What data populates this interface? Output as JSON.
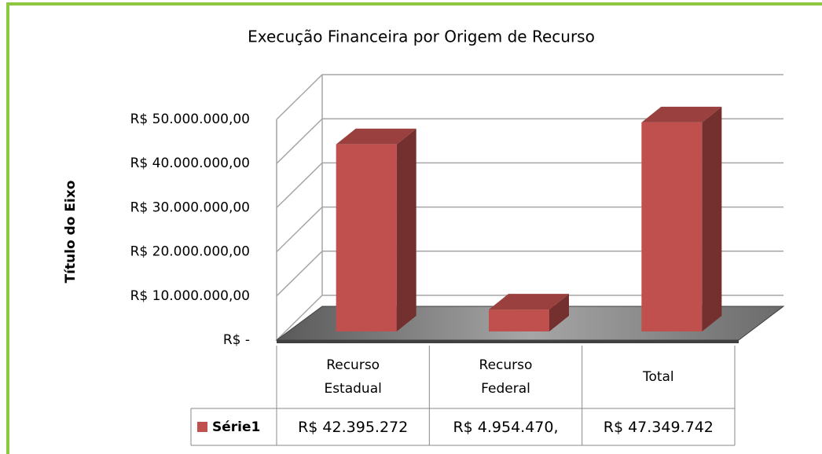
{
  "chart_data": {
    "type": "bar3d",
    "title": "Execução Financeira por Origem de Recurso",
    "y_axis_label": "Título do Eixo",
    "categories": [
      "Recurso Estadual",
      "Recurso Federal",
      "Total"
    ],
    "series": [
      {
        "name": "Série1",
        "color": "#c0504d",
        "values": [
          42395272,
          4954470,
          47349742
        ],
        "value_labels": [
          "R$ 42.395.272",
          "R$ 4.954.470,",
          "R$ 47.349.742"
        ]
      }
    ],
    "ylim": [
      0,
      50000000
    ],
    "yticks": [
      {
        "value": 0,
        "label": "R$ -"
      },
      {
        "value": 10000000,
        "label": "R$ 10.000.000,00"
      },
      {
        "value": 20000000,
        "label": "R$ 20.000.000,00"
      },
      {
        "value": 30000000,
        "label": "R$ 30.000.000,00"
      },
      {
        "value": 40000000,
        "label": "R$ 40.000.000,00"
      },
      {
        "value": 50000000,
        "label": "R$ 50.000.000,00"
      }
    ],
    "grid": true,
    "data_table": true
  }
}
